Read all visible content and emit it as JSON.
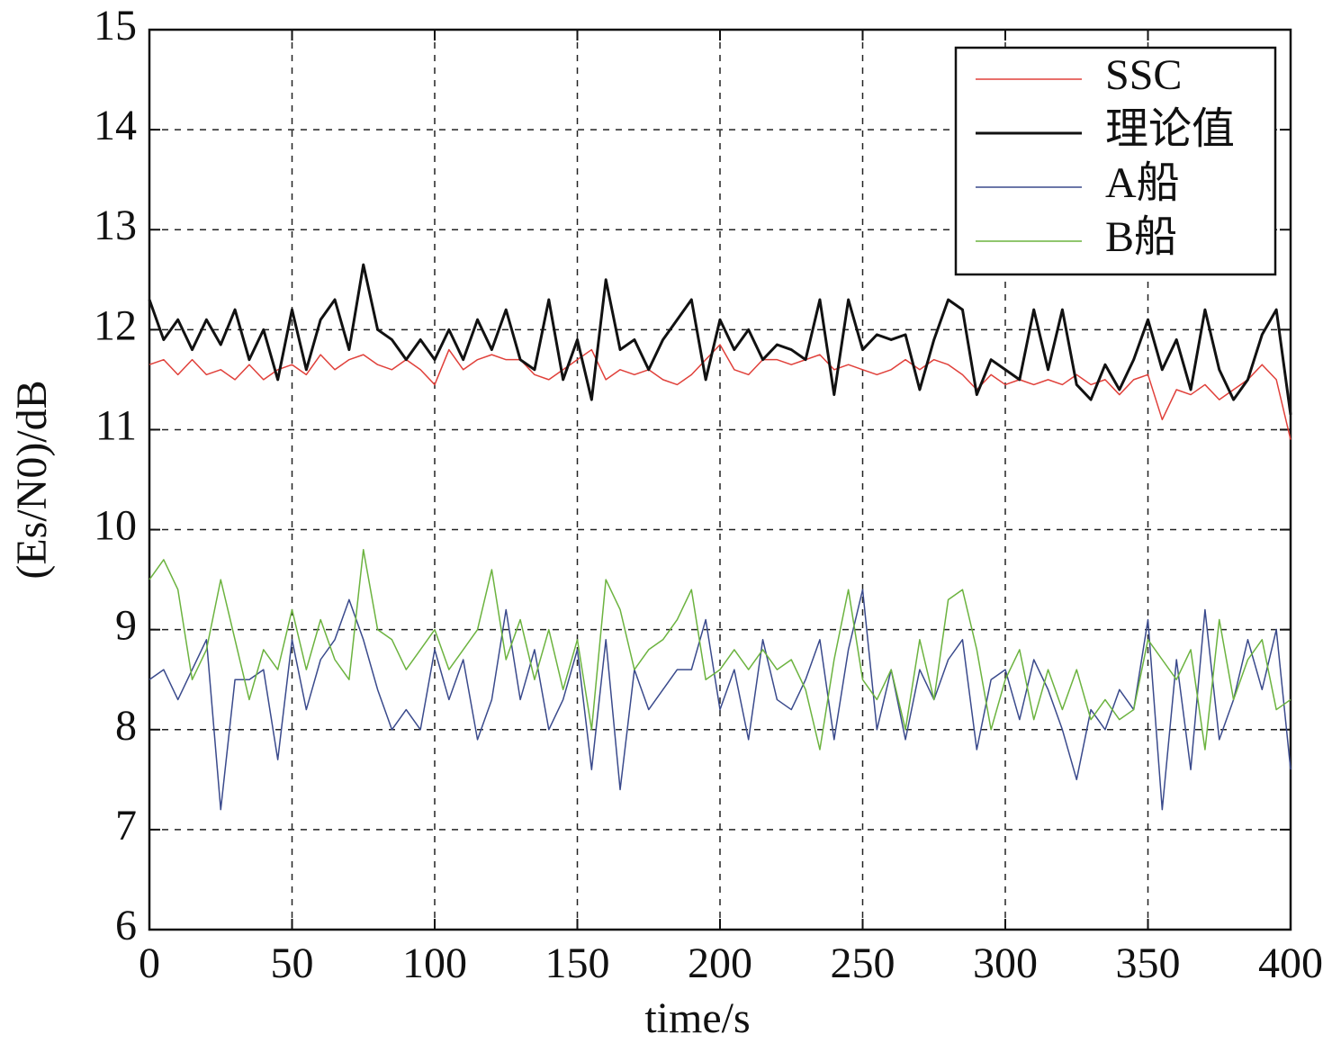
{
  "chart_data": {
    "type": "line",
    "xlabel": "time/s",
    "ylabel": "(Es/N0)/dB",
    "x": [
      0,
      5,
      10,
      15,
      20,
      25,
      30,
      35,
      40,
      45,
      50,
      55,
      60,
      65,
      70,
      75,
      80,
      85,
      90,
      95,
      100,
      105,
      110,
      115,
      120,
      125,
      130,
      135,
      140,
      145,
      150,
      155,
      160,
      165,
      170,
      175,
      180,
      185,
      190,
      195,
      200,
      205,
      210,
      215,
      220,
      225,
      230,
      235,
      240,
      245,
      250,
      255,
      260,
      265,
      270,
      275,
      280,
      285,
      290,
      295,
      300,
      305,
      310,
      315,
      320,
      325,
      330,
      335,
      340,
      345,
      350,
      355,
      360,
      365,
      370,
      375,
      380,
      385,
      390,
      395,
      400
    ],
    "series": [
      {
        "name": "SSC",
        "color": "#e0403a",
        "width": 1.5,
        "values": [
          11.65,
          11.7,
          11.55,
          11.7,
          11.55,
          11.6,
          11.5,
          11.65,
          11.5,
          11.6,
          11.65,
          11.55,
          11.75,
          11.6,
          11.7,
          11.75,
          11.65,
          11.6,
          11.7,
          11.6,
          11.45,
          11.8,
          11.6,
          11.7,
          11.75,
          11.7,
          11.7,
          11.55,
          11.5,
          11.6,
          11.7,
          11.8,
          11.5,
          11.6,
          11.55,
          11.6,
          11.5,
          11.45,
          11.55,
          11.7,
          11.85,
          11.6,
          11.55,
          11.7,
          11.7,
          11.65,
          11.7,
          11.75,
          11.6,
          11.65,
          11.6,
          11.55,
          11.6,
          11.7,
          11.6,
          11.7,
          11.65,
          11.55,
          11.4,
          11.55,
          11.45,
          11.5,
          11.45,
          11.5,
          11.45,
          11.55,
          11.45,
          11.5,
          11.35,
          11.5,
          11.55,
          11.1,
          11.4,
          11.35,
          11.45,
          11.3,
          11.4,
          11.5,
          11.65,
          11.5,
          10.9
        ]
      },
      {
        "name": "理论值",
        "color": "#111111",
        "width": 3,
        "values": [
          12.3,
          11.9,
          12.1,
          11.8,
          12.1,
          11.85,
          12.2,
          11.7,
          12.0,
          11.5,
          12.2,
          11.6,
          12.1,
          12.3,
          11.8,
          12.65,
          12.0,
          11.9,
          11.7,
          11.9,
          11.7,
          12.0,
          11.7,
          12.1,
          11.8,
          12.2,
          11.7,
          11.6,
          12.3,
          11.5,
          11.9,
          11.3,
          12.5,
          11.8,
          11.9,
          11.6,
          11.9,
          12.1,
          12.3,
          11.5,
          12.1,
          11.8,
          12.0,
          11.7,
          11.85,
          11.8,
          11.7,
          12.3,
          11.35,
          12.3,
          11.8,
          11.95,
          11.9,
          11.95,
          11.4,
          11.9,
          12.3,
          12.2,
          11.35,
          11.7,
          11.6,
          11.5,
          12.2,
          11.6,
          12.2,
          11.45,
          11.3,
          11.65,
          11.4,
          11.7,
          12.1,
          11.6,
          11.9,
          11.4,
          12.2,
          11.6,
          11.3,
          11.5,
          11.95,
          12.2,
          11.15
        ]
      },
      {
        "name": "A船",
        "color": "#3a4a8c",
        "width": 1.5,
        "values": [
          8.5,
          8.6,
          8.3,
          8.6,
          8.9,
          7.2,
          8.5,
          8.5,
          8.6,
          7.7,
          8.9,
          8.2,
          8.7,
          8.9,
          9.3,
          8.9,
          8.4,
          8.0,
          8.2,
          8.0,
          8.8,
          8.3,
          8.7,
          7.9,
          8.3,
          9.2,
          8.3,
          8.8,
          8.0,
          8.3,
          8.8,
          7.6,
          8.9,
          7.4,
          8.6,
          8.2,
          8.4,
          8.6,
          8.6,
          9.1,
          8.2,
          8.6,
          7.9,
          8.9,
          8.3,
          8.2,
          8.5,
          8.9,
          7.9,
          8.8,
          9.4,
          8.0,
          8.6,
          7.9,
          8.6,
          8.3,
          8.7,
          8.9,
          7.8,
          8.5,
          8.6,
          8.1,
          8.7,
          8.4,
          8.0,
          7.5,
          8.2,
          8.0,
          8.4,
          8.2,
          9.1,
          7.2,
          8.7,
          7.6,
          9.2,
          7.9,
          8.3,
          8.9,
          8.4,
          9.0,
          7.6
        ]
      },
      {
        "name": "B船",
        "color": "#6cb33f",
        "width": 1.5,
        "values": [
          9.5,
          9.7,
          9.4,
          8.5,
          8.8,
          9.5,
          8.9,
          8.3,
          8.8,
          8.6,
          9.2,
          8.6,
          9.1,
          8.7,
          8.5,
          9.8,
          9.0,
          8.9,
          8.6,
          8.8,
          9.0,
          8.6,
          8.8,
          9.0,
          9.6,
          8.7,
          9.1,
          8.5,
          9.0,
          8.4,
          8.9,
          8.0,
          9.5,
          9.2,
          8.6,
          8.8,
          8.9,
          9.1,
          9.4,
          8.5,
          8.6,
          8.8,
          8.6,
          8.8,
          8.6,
          8.7,
          8.4,
          7.8,
          8.7,
          9.4,
          8.5,
          8.3,
          8.6,
          8.0,
          8.9,
          8.3,
          9.3,
          9.4,
          8.8,
          8.0,
          8.5,
          8.8,
          8.1,
          8.6,
          8.2,
          8.6,
          8.1,
          8.3,
          8.1,
          8.2,
          8.9,
          8.7,
          8.5,
          8.8,
          7.8,
          9.1,
          8.3,
          8.7,
          8.9,
          8.2,
          8.3
        ]
      }
    ],
    "xlim": [
      0,
      400
    ],
    "xticks": [
      0,
      50,
      100,
      150,
      200,
      250,
      300,
      350,
      400
    ],
    "ylim": [
      6,
      15
    ],
    "yticks": [
      6,
      7,
      8,
      9,
      10,
      11,
      12,
      13,
      14,
      15
    ],
    "grid": true,
    "legend": "upper right"
  }
}
